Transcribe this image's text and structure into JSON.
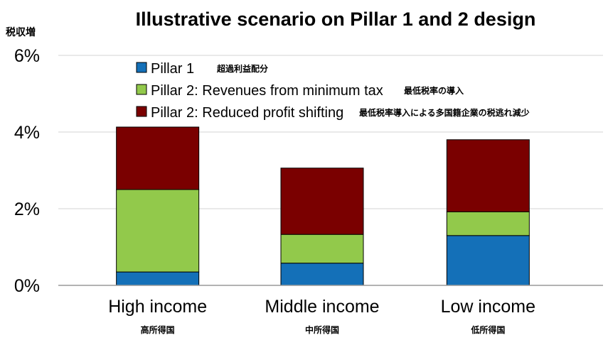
{
  "chart_data": {
    "type": "bar",
    "stacked": true,
    "title": "Illustrative scenario on Pillar 1 and 2 design",
    "ylabel": "税収増",
    "ylim": [
      0,
      6
    ],
    "yticks": [
      "0%",
      "2%",
      "4%",
      "6%"
    ],
    "grid": true,
    "legend_position": "top",
    "categories": [
      "High income",
      "Middle income",
      "Low income"
    ],
    "categories_jp": [
      "高所得国",
      "中所得国",
      "低所得国"
    ],
    "series": [
      {
        "name": "Pillar 1",
        "name_jp": "超過利益配分",
        "color": "#1470b8",
        "values": [
          0.35,
          0.58,
          1.3
        ]
      },
      {
        "name": "Pillar 2: Revenues from minimum tax",
        "name_jp": "最低税率の導入",
        "color": "#92c94b",
        "values": [
          2.15,
          0.75,
          0.62
        ]
      },
      {
        "name": "Pillar 2: Reduced profit shifting",
        "name_jp": "最低税率導入による多国籍企業の税逃れ減少",
        "color": "#7a0000",
        "values": [
          1.63,
          1.73,
          1.88
        ]
      }
    ]
  }
}
